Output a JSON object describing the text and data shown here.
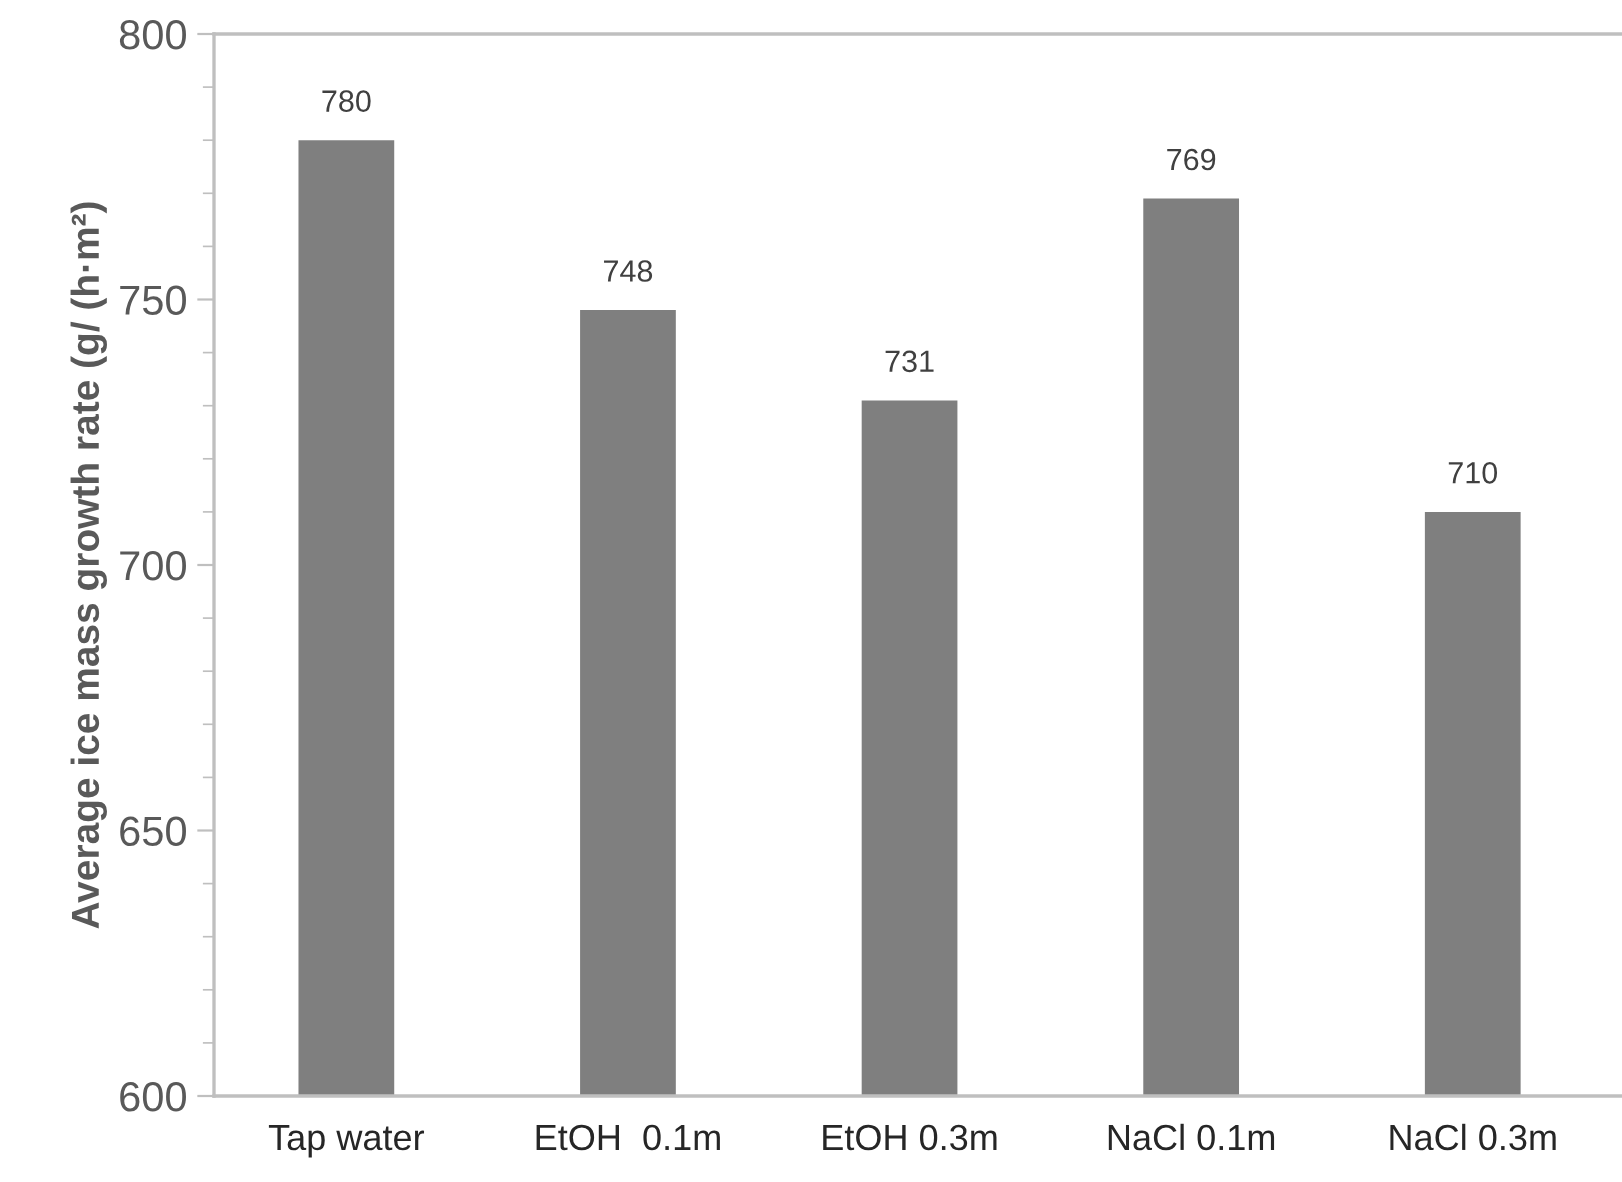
{
  "chart_data": {
    "type": "bar",
    "ylabel": "Average ice mass growth rate (g/ (h·m²)",
    "categories": [
      "Tap water",
      "EtOH  0.1m",
      "EtOH 0.3m",
      "NaCl 0.1m",
      "NaCl 0.3m"
    ],
    "values": [
      780,
      748,
      731,
      769,
      710
    ],
    "color": "#7f7f7f",
    "ylim": [
      600,
      800
    ],
    "yticks": [
      600,
      650,
      700,
      750,
      800
    ],
    "grid": false,
    "data_labels": true
  }
}
